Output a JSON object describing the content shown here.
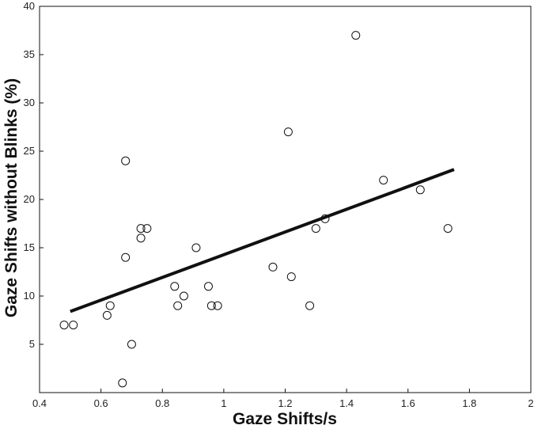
{
  "chart_data": {
    "type": "scatter",
    "title": "",
    "xlabel": "Gaze Shifts/s",
    "ylabel": "Gaze Shifts without Blinks (%)",
    "xlim": [
      0.4,
      2.0
    ],
    "ylim": [
      0,
      40
    ],
    "xticks": [
      "0.4",
      "0.6",
      "0.8",
      "1",
      "1.2",
      "1.4",
      "1.6",
      "1.8",
      "2"
    ],
    "xtick_values": [
      0.4,
      0.6,
      0.8,
      1.0,
      1.2,
      1.4,
      1.6,
      1.8,
      2.0
    ],
    "yticks": [
      "5",
      "10",
      "15",
      "20",
      "25",
      "30",
      "35",
      "40"
    ],
    "ytick_values": [
      5,
      10,
      15,
      20,
      25,
      30,
      35,
      40
    ],
    "grid": false,
    "points": [
      {
        "x": 0.48,
        "y": 7
      },
      {
        "x": 0.51,
        "y": 7
      },
      {
        "x": 0.62,
        "y": 8
      },
      {
        "x": 0.63,
        "y": 9
      },
      {
        "x": 0.67,
        "y": 1
      },
      {
        "x": 0.68,
        "y": 24
      },
      {
        "x": 0.68,
        "y": 14
      },
      {
        "x": 0.7,
        "y": 5
      },
      {
        "x": 0.73,
        "y": 17
      },
      {
        "x": 0.73,
        "y": 16
      },
      {
        "x": 0.75,
        "y": 17
      },
      {
        "x": 0.84,
        "y": 11
      },
      {
        "x": 0.85,
        "y": 9
      },
      {
        "x": 0.87,
        "y": 10
      },
      {
        "x": 0.91,
        "y": 15
      },
      {
        "x": 0.95,
        "y": 11
      },
      {
        "x": 0.96,
        "y": 9
      },
      {
        "x": 0.98,
        "y": 9
      },
      {
        "x": 1.16,
        "y": 13
      },
      {
        "x": 1.21,
        "y": 27
      },
      {
        "x": 1.22,
        "y": 12
      },
      {
        "x": 1.28,
        "y": 9
      },
      {
        "x": 1.3,
        "y": 17
      },
      {
        "x": 1.33,
        "y": 18
      },
      {
        "x": 1.43,
        "y": 37
      },
      {
        "x": 1.52,
        "y": 22
      },
      {
        "x": 1.64,
        "y": 21
      },
      {
        "x": 1.73,
        "y": 17
      }
    ],
    "fit_line": {
      "x": [
        0.5,
        1.75
      ],
      "y": [
        8.4,
        23.1
      ]
    }
  }
}
